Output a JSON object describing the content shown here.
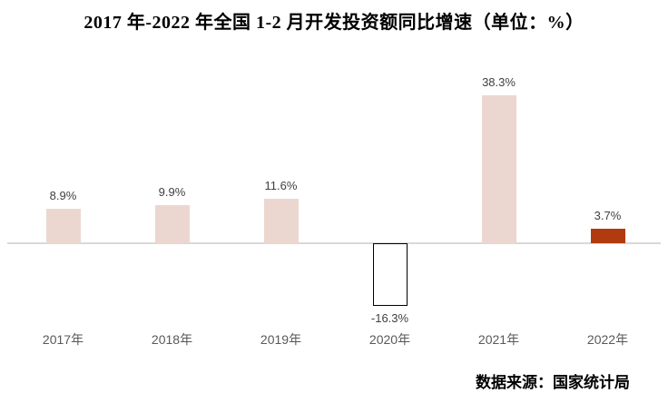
{
  "title": "2017 年-2022 年全国 1-2 月开发投资额同比增速（单位：%）",
  "source_note": "数据来源：国家统计局",
  "colors": {
    "bar_default": "#ecd7d0",
    "bar_negative_fill": "#ffffff",
    "bar_negative_border": "#000000",
    "bar_highlight": "#b23a10",
    "axis_line": "#d9d9d9",
    "value_label": "#404040",
    "category_label": "#595959",
    "title_text": "#000000",
    "background": "#ffffff"
  },
  "chart_data": {
    "type": "bar",
    "title": "2017 年-2022 年全国 1-2 月开发投资额同比增速（单位：%）",
    "categories": [
      "2017年",
      "2018年",
      "2019年",
      "2020年",
      "2021年",
      "2022年"
    ],
    "values": [
      8.9,
      9.9,
      11.6,
      -16.3,
      38.3,
      3.7
    ],
    "value_labels": [
      "8.9%",
      "9.9%",
      "11.6%",
      "-16.3%",
      "38.3%",
      "3.7%"
    ],
    "bar_styles": [
      "default",
      "default",
      "default",
      "negative",
      "default",
      "highlight"
    ],
    "xlabel": "",
    "ylabel": "",
    "unit": "%",
    "ylim": [
      -20,
      45
    ],
    "grid": false,
    "legend": "none",
    "baseline": 0
  }
}
